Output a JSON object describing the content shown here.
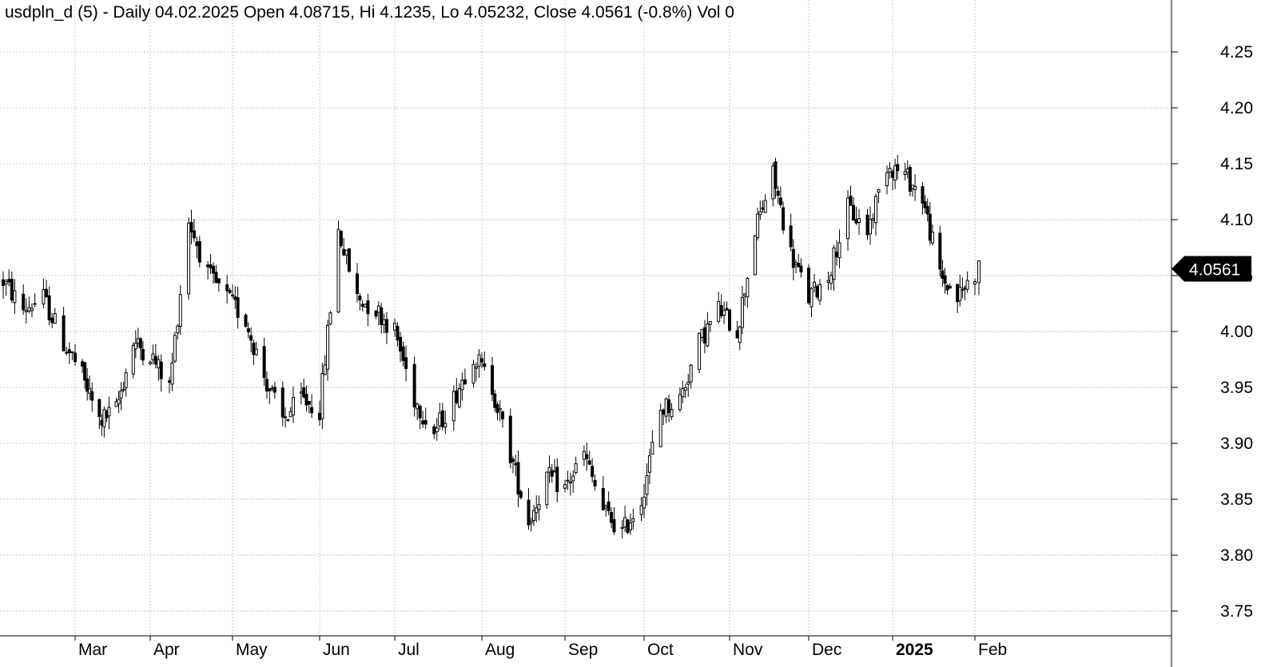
{
  "chart_data": {
    "type": "candlestick",
    "title": "usdpln_d (5) - Daily 04.02.2025 Open 4.08715, Hi 4.1235, Lo 4.05232, Close 4.0561 (-0.8%) Vol 0",
    "last_value_label": "4.0561",
    "ylim": [
      3.72,
      4.3
    ],
    "y_ticks": [
      "3.75",
      "3.80",
      "3.85",
      "3.90",
      "3.95",
      "4.00",
      "4.05",
      "4.10",
      "4.15",
      "4.20",
      "4.25"
    ],
    "x_ticks": [
      {
        "label": "Mar",
        "date": "2024-03-01",
        "bold": false
      },
      {
        "label": "Apr",
        "date": "2024-04-01",
        "bold": false
      },
      {
        "label": "May",
        "date": "2024-05-01",
        "bold": false
      },
      {
        "label": "Jun",
        "date": "2024-06-03",
        "bold": false
      },
      {
        "label": "Jul",
        "date": "2024-07-01",
        "bold": false
      },
      {
        "label": "Aug",
        "date": "2024-08-01",
        "bold": false
      },
      {
        "label": "Sep",
        "date": "2024-09-02",
        "bold": false
      },
      {
        "label": "Oct",
        "date": "2024-10-01",
        "bold": false
      },
      {
        "label": "Nov",
        "date": "2024-11-01",
        "bold": false
      },
      {
        "label": "Dec",
        "date": "2024-12-02",
        "bold": false
      },
      {
        "label": "2025",
        "date": "2025-01-01",
        "bold": true
      },
      {
        "label": "Feb",
        "date": "2025-02-03",
        "bold": false
      }
    ],
    "grid": true,
    "price_series": [
      [
        "2024-02-05",
        4.045
      ],
      [
        "2024-02-12",
        4.02
      ],
      [
        "2024-02-19",
        4.03
      ],
      [
        "2024-02-26",
        3.99
      ],
      [
        "2024-03-04",
        3.96
      ],
      [
        "2024-03-11",
        3.92
      ],
      [
        "2024-03-18",
        3.93
      ],
      [
        "2024-03-25",
        3.99
      ],
      [
        "2024-04-01",
        3.98
      ],
      [
        "2024-04-08",
        3.95
      ],
      [
        "2024-04-15",
        4.1
      ],
      [
        "2024-04-22",
        4.05
      ],
      [
        "2024-04-29",
        4.03
      ],
      [
        "2024-05-06",
        4.01
      ],
      [
        "2024-05-13",
        3.96
      ],
      [
        "2024-05-20",
        3.92
      ],
      [
        "2024-05-27",
        3.94
      ],
      [
        "2024-06-03",
        3.93
      ],
      [
        "2024-06-10",
        4.09
      ],
      [
        "2024-06-17",
        4.03
      ],
      [
        "2024-06-24",
        4.02
      ],
      [
        "2024-07-01",
        4.0
      ],
      [
        "2024-07-08",
        3.94
      ],
      [
        "2024-07-15",
        3.91
      ],
      [
        "2024-07-22",
        3.94
      ],
      [
        "2024-07-29",
        3.98
      ],
      [
        "2024-08-05",
        3.95
      ],
      [
        "2024-08-12",
        3.89
      ],
      [
        "2024-08-19",
        3.83
      ],
      [
        "2024-08-26",
        3.87
      ],
      [
        "2024-09-02",
        3.86
      ],
      [
        "2024-09-09",
        3.89
      ],
      [
        "2024-09-16",
        3.84
      ],
      [
        "2024-09-23",
        3.82
      ],
      [
        "2024-09-30",
        3.85
      ],
      [
        "2024-10-07",
        3.93
      ],
      [
        "2024-10-14",
        3.94
      ],
      [
        "2024-10-21",
        3.99
      ],
      [
        "2024-10-28",
        4.02
      ],
      [
        "2024-11-04",
        4.0
      ],
      [
        "2024-11-11",
        4.09
      ],
      [
        "2024-11-18",
        4.14
      ],
      [
        "2024-11-25",
        4.07
      ],
      [
        "2024-12-02",
        4.03
      ],
      [
        "2024-12-09",
        4.05
      ],
      [
        "2024-12-16",
        4.11
      ],
      [
        "2024-12-23",
        4.09
      ],
      [
        "2024-12-30",
        4.15
      ],
      [
        "2025-01-06",
        4.14
      ],
      [
        "2025-01-13",
        4.12
      ],
      [
        "2025-01-20",
        4.05
      ],
      [
        "2025-01-27",
        4.03
      ],
      [
        "2025-02-04",
        4.0561
      ]
    ]
  }
}
